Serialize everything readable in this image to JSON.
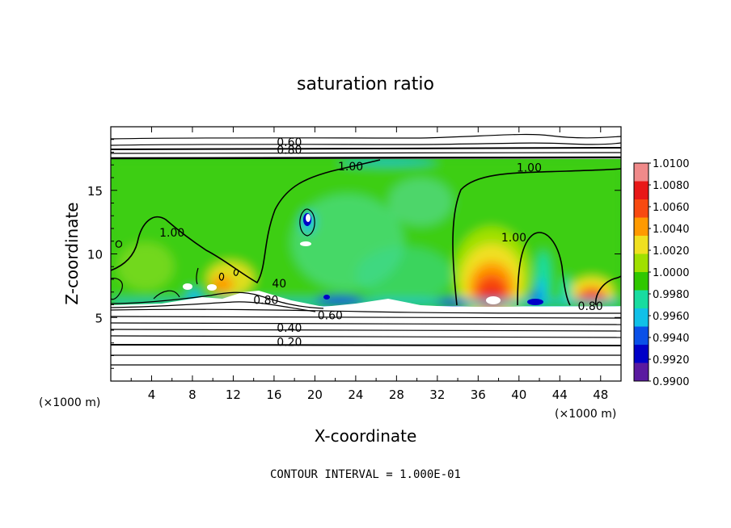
{
  "chart_data": {
    "type": "heatmap",
    "title": "saturation ratio",
    "xlabel": "X-coordinate",
    "ylabel": "Z-coordinate",
    "x_unit_label": "(×1000 m)",
    "xlim": [
      0,
      50
    ],
    "ylim": [
      0,
      20
    ],
    "x_ticks": [
      4,
      8,
      12,
      16,
      20,
      24,
      28,
      32,
      36,
      40,
      44,
      48
    ],
    "x_tick_labels": [
      "4",
      "8",
      "12",
      "16",
      "20",
      "24",
      "28",
      "32",
      "36",
      "40",
      "44",
      "48"
    ],
    "y_ticks": [
      5,
      10,
      15
    ],
    "y_tick_labels": [
      "5",
      "10",
      "15"
    ],
    "colorbar": {
      "labels": [
        "1.0100",
        "1.0080",
        "1.0060",
        "1.0040",
        "1.0020",
        "1.0000",
        "0.9980",
        "0.9960",
        "0.9940",
        "0.9920",
        "0.9900"
      ],
      "colors": [
        "#f08a8a",
        "#e81818",
        "#f84a10",
        "#ff9a00",
        "#f0e020",
        "#a0e000",
        "#30c800",
        "#18dca0",
        "#10c0e8",
        "#0a50e8",
        "#0000c8",
        "#5a1aa0"
      ]
    },
    "contour_labels": [
      {
        "text": "0.60",
        "x": 17.5,
        "y": 18.6
      },
      {
        "text": "0.80",
        "x": 17.5,
        "y": 18.0
      },
      {
        "text": "1.00",
        "x": 23.5,
        "y": 16.7
      },
      {
        "text": "1.00",
        "x": 41.0,
        "y": 16.6
      },
      {
        "text": "1.00",
        "x": 6.0,
        "y": 11.5
      },
      {
        "text": "1.00",
        "x": 39.5,
        "y": 11.1
      },
      {
        "text": "40",
        "x": 16.5,
        "y": 7.5
      },
      {
        "text": "0.80",
        "x": 15.2,
        "y": 6.2
      },
      {
        "text": "0.60",
        "x": 21.5,
        "y": 5.0
      },
      {
        "text": "0.40",
        "x": 17.5,
        "y": 4.0
      },
      {
        "text": "0.20",
        "x": 17.5,
        "y": 2.9
      },
      {
        "text": "0.80",
        "x": 47.0,
        "y": 5.7
      }
    ],
    "footer": "CONTOUR INTERVAL = 1.000E-01"
  }
}
